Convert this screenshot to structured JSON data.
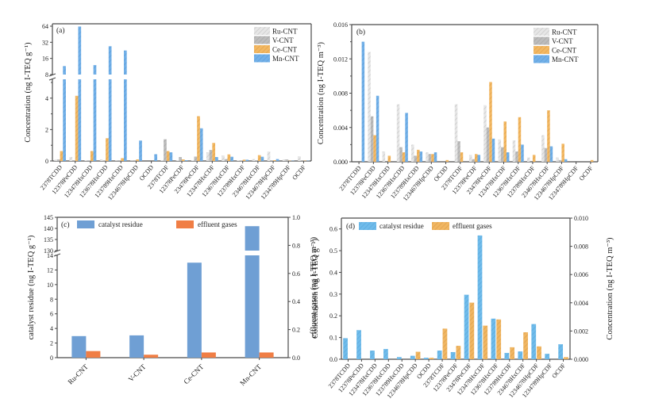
{
  "colors": {
    "ru": "#dcdcdc",
    "v": "#b4b4b4",
    "ce": "#f0b35a",
    "mn": "#6faee6",
    "residue_c": "#6f9fd4",
    "gas_c": "#f07e45",
    "residue_d": "#6ab8e8",
    "gas_d": "#efb25a",
    "axis": "#555555"
  },
  "chart_data": [
    {
      "id": "a",
      "type": "bar",
      "panel_label": "(a)",
      "ylabel": "Concentration (ng I-TEQ g⁻¹)",
      "y_break": {
        "lower_range": [
          0,
          5
        ],
        "upper_range": [
          8,
          64
        ],
        "upper_scale": "log2"
      },
      "yticks_lower": [
        0,
        2,
        4
      ],
      "yticks_upper": [
        8,
        16,
        32,
        64
      ],
      "legend_position": "top-right",
      "categories": [
        "2378TCDD",
        "12378PeCDD",
        "123478HxCDD",
        "123678HxCDD",
        "123789HxCDD",
        "1234678HpCDD",
        "OCDD",
        "2378TCDF",
        "12378PeCDF",
        "23478PeCDF",
        "123478HxCDF",
        "123678HxCDF",
        "123789HxCDF",
        "234678HxCDF",
        "1234678HpCDF",
        "1234789HpCDF",
        "OCDF"
      ],
      "series": [
        {
          "name": "Ru-CNT",
          "values": [
            0.08,
            0.25,
            0.05,
            0.1,
            0.02,
            0.02,
            0.0,
            0.05,
            0.05,
            0.05,
            0.55,
            0.35,
            0.05,
            0.12,
            0.6,
            0.1,
            0.3
          ]
        },
        {
          "name": "V-CNT",
          "values": [
            0.1,
            0.05,
            0.03,
            0.03,
            0.02,
            0.02,
            0.0,
            1.38,
            0.25,
            0.28,
            0.7,
            0.12,
            0.03,
            0.05,
            0.05,
            0.1,
            0.05
          ]
        },
        {
          "name": "Ce-CNT",
          "values": [
            0.63,
            4.15,
            0.63,
            1.45,
            0.18,
            0.1,
            0.0,
            0.63,
            0.1,
            2.85,
            1.15,
            0.42,
            0.08,
            0.37,
            0.05,
            0.02,
            0.02
          ]
        },
        {
          "name": "Mn-CNT",
          "values": [
            11.5,
            63,
            12,
            27,
            22.5,
            1.3,
            0.43,
            0.55,
            0.05,
            2.08,
            0.25,
            0.27,
            0.08,
            0.27,
            0.12,
            0.02,
            0.02
          ]
        }
      ]
    },
    {
      "id": "b",
      "type": "bar",
      "panel_label": "(b)",
      "ylabel": "Concentration (ng I-TEQ m⁻³)",
      "ylim": [
        0,
        0.016
      ],
      "yticks": [
        "0.000",
        "0.004",
        "0.008",
        "0.012",
        "0.016"
      ],
      "legend_position": "top-right",
      "categories": [
        "2378TCDD",
        "12378PeCDD",
        "123478HxCDD",
        "123678HxCDD",
        "123789HxCDD",
        "1234678HpCDD",
        "OCDD",
        "2378TCDF",
        "12378PeCDF",
        "23478PeCDF",
        "123478HxCDF",
        "123678HxCDF",
        "123789HxCDF",
        "234678HxCDF",
        "1234678HpCDF",
        "1234789HpCDF",
        "OCDF"
      ],
      "series": [
        {
          "name": "Ru-CNT",
          "values": [
            0.0,
            0.0128,
            0.0012,
            0.0067,
            0.002,
            0.0011,
            0.0,
            0.0067,
            0.0008,
            0.0066,
            0.0026,
            0.0025,
            0.0005,
            0.0031,
            0.0005,
            0.0,
            0.0
          ]
        },
        {
          "name": "V-CNT",
          "values": [
            0.0,
            0.0053,
            0.0,
            0.0017,
            0.0007,
            0.0009,
            0.0,
            0.0024,
            0.0003,
            0.004,
            0.0017,
            0.0012,
            0.0,
            0.0016,
            0.0002,
            0.0,
            0.0
          ]
        },
        {
          "name": "Ce-CNT",
          "values": [
            0.0,
            0.0031,
            0.0007,
            0.0011,
            0.0014,
            0.0009,
            0.0002,
            0.0011,
            0.0009,
            0.0093,
            0.0047,
            0.0052,
            0.0008,
            0.006,
            0.0021,
            0.0,
            0.0002
          ]
        },
        {
          "name": "Mn-CNT",
          "values": [
            0.014,
            0.0077,
            0.0,
            0.0057,
            0.0012,
            0.0011,
            0.0,
            0.0,
            0.0008,
            0.0027,
            0.0011,
            0.002,
            0.0,
            0.0018,
            0.0003,
            0.0,
            0.0
          ]
        }
      ]
    },
    {
      "id": "c",
      "type": "bar",
      "panel_label": "(c)",
      "ylabel_left": "catalyst residue (ng I-TEQ g⁻¹)",
      "ylabel_right": "effluent gases (ng I-TEQ m⁻³)",
      "y_break_left": {
        "lower_range": [
          0,
          14
        ],
        "upper_range": [
          130,
          145
        ]
      },
      "yticks_left_lower": [
        0,
        2,
        4,
        6,
        8,
        10,
        12,
        14
      ],
      "yticks_left_upper": [
        130,
        135,
        140,
        145
      ],
      "ylim_right": [
        0,
        1.0
      ],
      "yticks_right": [
        "0.0",
        "0.2",
        "0.4",
        "0.6",
        "0.8",
        "1.0"
      ],
      "legend_position": "top-left",
      "categories": [
        "Ru-CNT",
        "V-CNT",
        "Ce-CNT",
        "Mn-CNT"
      ],
      "series": [
        {
          "name": "catalyst residue",
          "axis": "left",
          "values": [
            2.95,
            3.05,
            13.0,
            141.0
          ]
        },
        {
          "name": "effluent gases",
          "axis": "right",
          "values": [
            0.047,
            0.021,
            0.037,
            0.037
          ]
        }
      ]
    },
    {
      "id": "d",
      "type": "bar",
      "panel_label": "(d)",
      "ylabel_left": "Concentration (ng I-TEQ g⁻¹)",
      "ylabel_right": "Concentration (ng I-TEQ m⁻³)",
      "ylim_left": [
        0,
        0.65
      ],
      "yticks_left": [
        "0.0",
        "0.1",
        "0.2",
        "0.3",
        "0.4",
        "0.5",
        "0.6"
      ],
      "ylim_right": [
        0,
        0.01
      ],
      "yticks_right": [
        "0.000",
        "0.002",
        "0.004",
        "0.006",
        "0.008",
        "0.010"
      ],
      "legend_position": "top-left",
      "categories": [
        "2378TCDD",
        "12378PeCDD",
        "123478HxCDD",
        "123678HxCDD",
        "123789HxCDD",
        "1234678HpCDD",
        "OCDD",
        "2378TCDF",
        "12378PeCDF",
        "23478PeCDF",
        "123478HxCDF",
        "123678HxCDF",
        "123789HxCDF",
        "234678HxCDF",
        "1234678HpCDF",
        "1234789HpCDF",
        "OCDF"
      ],
      "series": [
        {
          "name": "catalyst residue",
          "axis": "left",
          "values": [
            0.097,
            0.134,
            0.04,
            0.047,
            0.01,
            0.016,
            0.007,
            0.04,
            0.033,
            0.297,
            0.57,
            0.187,
            0.029,
            0.036,
            0.162,
            0.025,
            0.069
          ]
        },
        {
          "name": "effluent gases",
          "axis": "right",
          "values": [
            0.0,
            0.0,
            0.0,
            0.0,
            0.0,
            0.00053,
            0.0001,
            0.00217,
            0.00095,
            0.00401,
            0.00238,
            0.00282,
            0.00085,
            0.00191,
            0.00091,
            0.0,
            0.00015
          ]
        }
      ]
    }
  ]
}
